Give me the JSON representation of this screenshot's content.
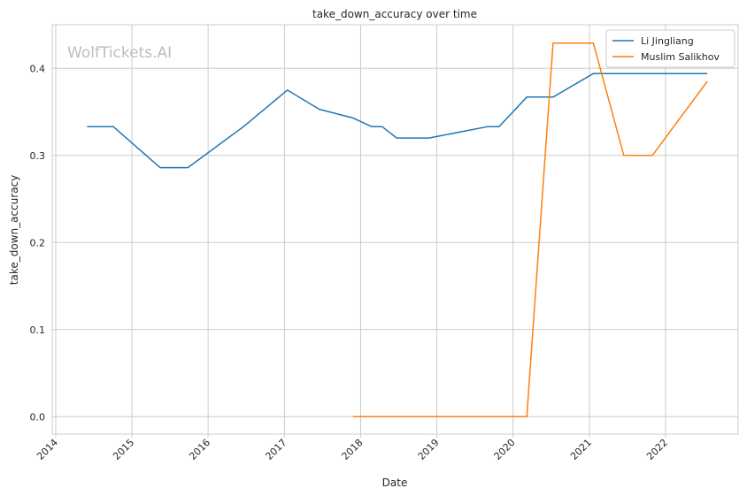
{
  "watermark": "WolfTickets.AI",
  "chart_data": {
    "type": "line",
    "title": "take_down_accuracy over time",
    "xlabel": "Date",
    "ylabel": "take_down_accuracy",
    "x_axis": "date",
    "xlim": [
      "2013-12-15",
      "2022-12-15"
    ],
    "ylim": [
      -0.02,
      0.45
    ],
    "xticks": [
      "2014",
      "2015",
      "2016",
      "2017",
      "2018",
      "2019",
      "2020",
      "2021",
      "2022"
    ],
    "yticks": [
      "0.0",
      "0.1",
      "0.2",
      "0.3",
      "0.4"
    ],
    "grid": true,
    "legend_position": "top-right",
    "series": [
      {
        "name": "Li Jingliang",
        "color": "#1f77b4",
        "x": [
          "2014-05-31",
          "2014-10-04",
          "2015-05-16",
          "2015-09-26",
          "2016-06-18",
          "2017-01-15",
          "2017-06-17",
          "2017-11-25",
          "2018-02-24",
          "2018-04-14",
          "2018-06-23",
          "2018-11-24",
          "2019-08-31",
          "2019-10-26",
          "2020-03-07",
          "2020-07-11",
          "2021-01-20",
          "2022-07-20"
        ],
        "values": [
          0.333,
          0.333,
          0.286,
          0.286,
          0.333,
          0.375,
          0.353,
          0.343,
          0.333,
          0.333,
          0.32,
          0.32,
          0.333,
          0.333,
          0.367,
          0.367,
          0.394,
          0.394
        ]
      },
      {
        "name": "Muslim Salikhov",
        "color": "#ff7f0e",
        "x": [
          "2017-11-25",
          "2020-03-07",
          "2020-07-11",
          "2021-01-20",
          "2021-06-15",
          "2021-10-30",
          "2022-07-20"
        ],
        "values": [
          0.0,
          0.0,
          0.429,
          0.429,
          0.3,
          0.3,
          0.385
        ]
      }
    ]
  }
}
